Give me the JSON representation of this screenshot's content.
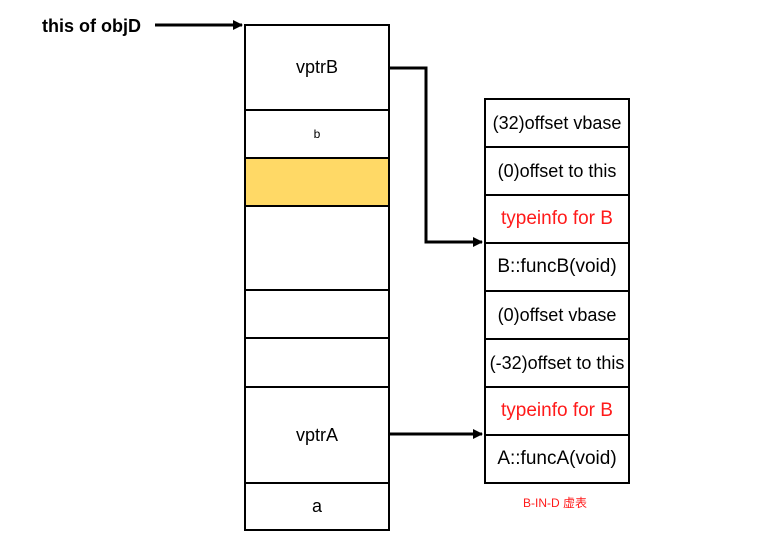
{
  "pointer_label": "this of objD",
  "object_layout": {
    "cells": [
      {
        "label": "vptrB",
        "fill": "#ffffff"
      },
      {
        "label": "b",
        "fill": "#ffffff"
      },
      {
        "label": "",
        "fill": "#ffd966"
      },
      {
        "label": "",
        "fill": "#ffffff"
      },
      {
        "label": "",
        "fill": "#ffffff"
      },
      {
        "label": "",
        "fill": "#ffffff"
      },
      {
        "label": "vptrA",
        "fill": "#ffffff"
      },
      {
        "label": "a",
        "fill": "#ffffff"
      }
    ]
  },
  "vtable": {
    "entries": [
      {
        "text": "(32)offset vbase",
        "color": "#000000"
      },
      {
        "text": "(0)offset to this",
        "color": "#000000"
      },
      {
        "text": "typeinfo for B",
        "color": "#ff1a1a"
      },
      {
        "text": "B::funcB(void)",
        "color": "#000000"
      },
      {
        "text": "(0)offset vbase",
        "color": "#000000"
      },
      {
        "text": "(-32)offset to this",
        "color": "#000000"
      },
      {
        "text": "typeinfo for B",
        "color": "#ff1a1a"
      },
      {
        "text": "A::funcA(void)",
        "color": "#000000"
      }
    ],
    "caption": "B-IN-D 虚表",
    "caption_color": "#ff1a1a"
  }
}
